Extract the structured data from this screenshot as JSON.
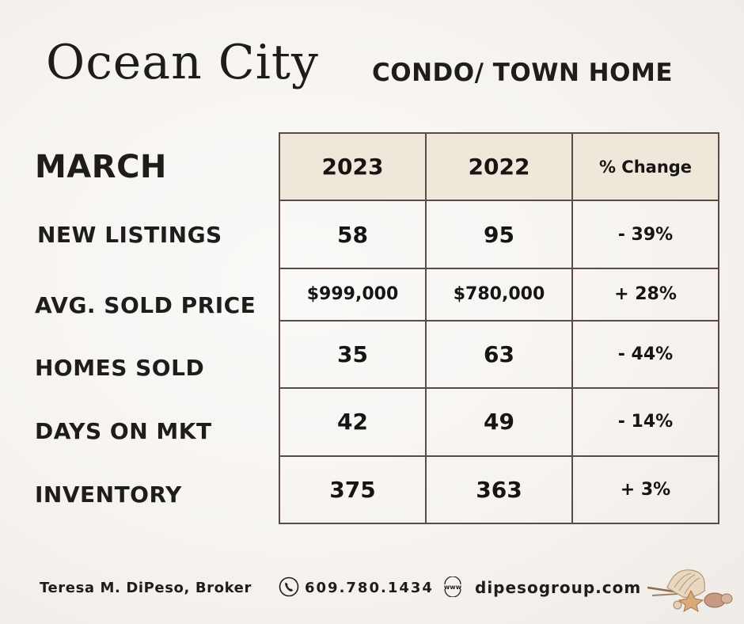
{
  "header": {
    "title": "Ocean City",
    "subtitle": "CONDO/ TOWN HOME"
  },
  "table": {
    "month": "MARCH",
    "columns": [
      "2023",
      "2022",
      "% Change"
    ],
    "rows": [
      {
        "label": "NEW LISTINGS",
        "values": [
          "58",
          "95",
          "- 39%"
        ]
      },
      {
        "label": "AVG. SOLD PRICE",
        "values": [
          "$999,000",
          "$780,000",
          "+ 28%"
        ]
      },
      {
        "label": "HOMES SOLD",
        "values": [
          "35",
          "63",
          "- 44%"
        ]
      },
      {
        "label": "DAYS ON MKT",
        "values": [
          "42",
          "49",
          "- 14%"
        ]
      },
      {
        "label": "INVENTORY",
        "values": [
          "375",
          "363",
          "+ 3%"
        ]
      }
    ]
  },
  "footer": {
    "broker": "Teresa M. DiPeso, Broker",
    "phone": "609.780.1434",
    "www_icon_text": "www",
    "website": "dipesogroup.com"
  },
  "colors": {
    "header_fill": "#efe7d9",
    "border": "#5b4a46",
    "text": "#1f1d1c"
  },
  "icons": [
    "phone-icon",
    "www-icon",
    "seashells-decoration"
  ]
}
